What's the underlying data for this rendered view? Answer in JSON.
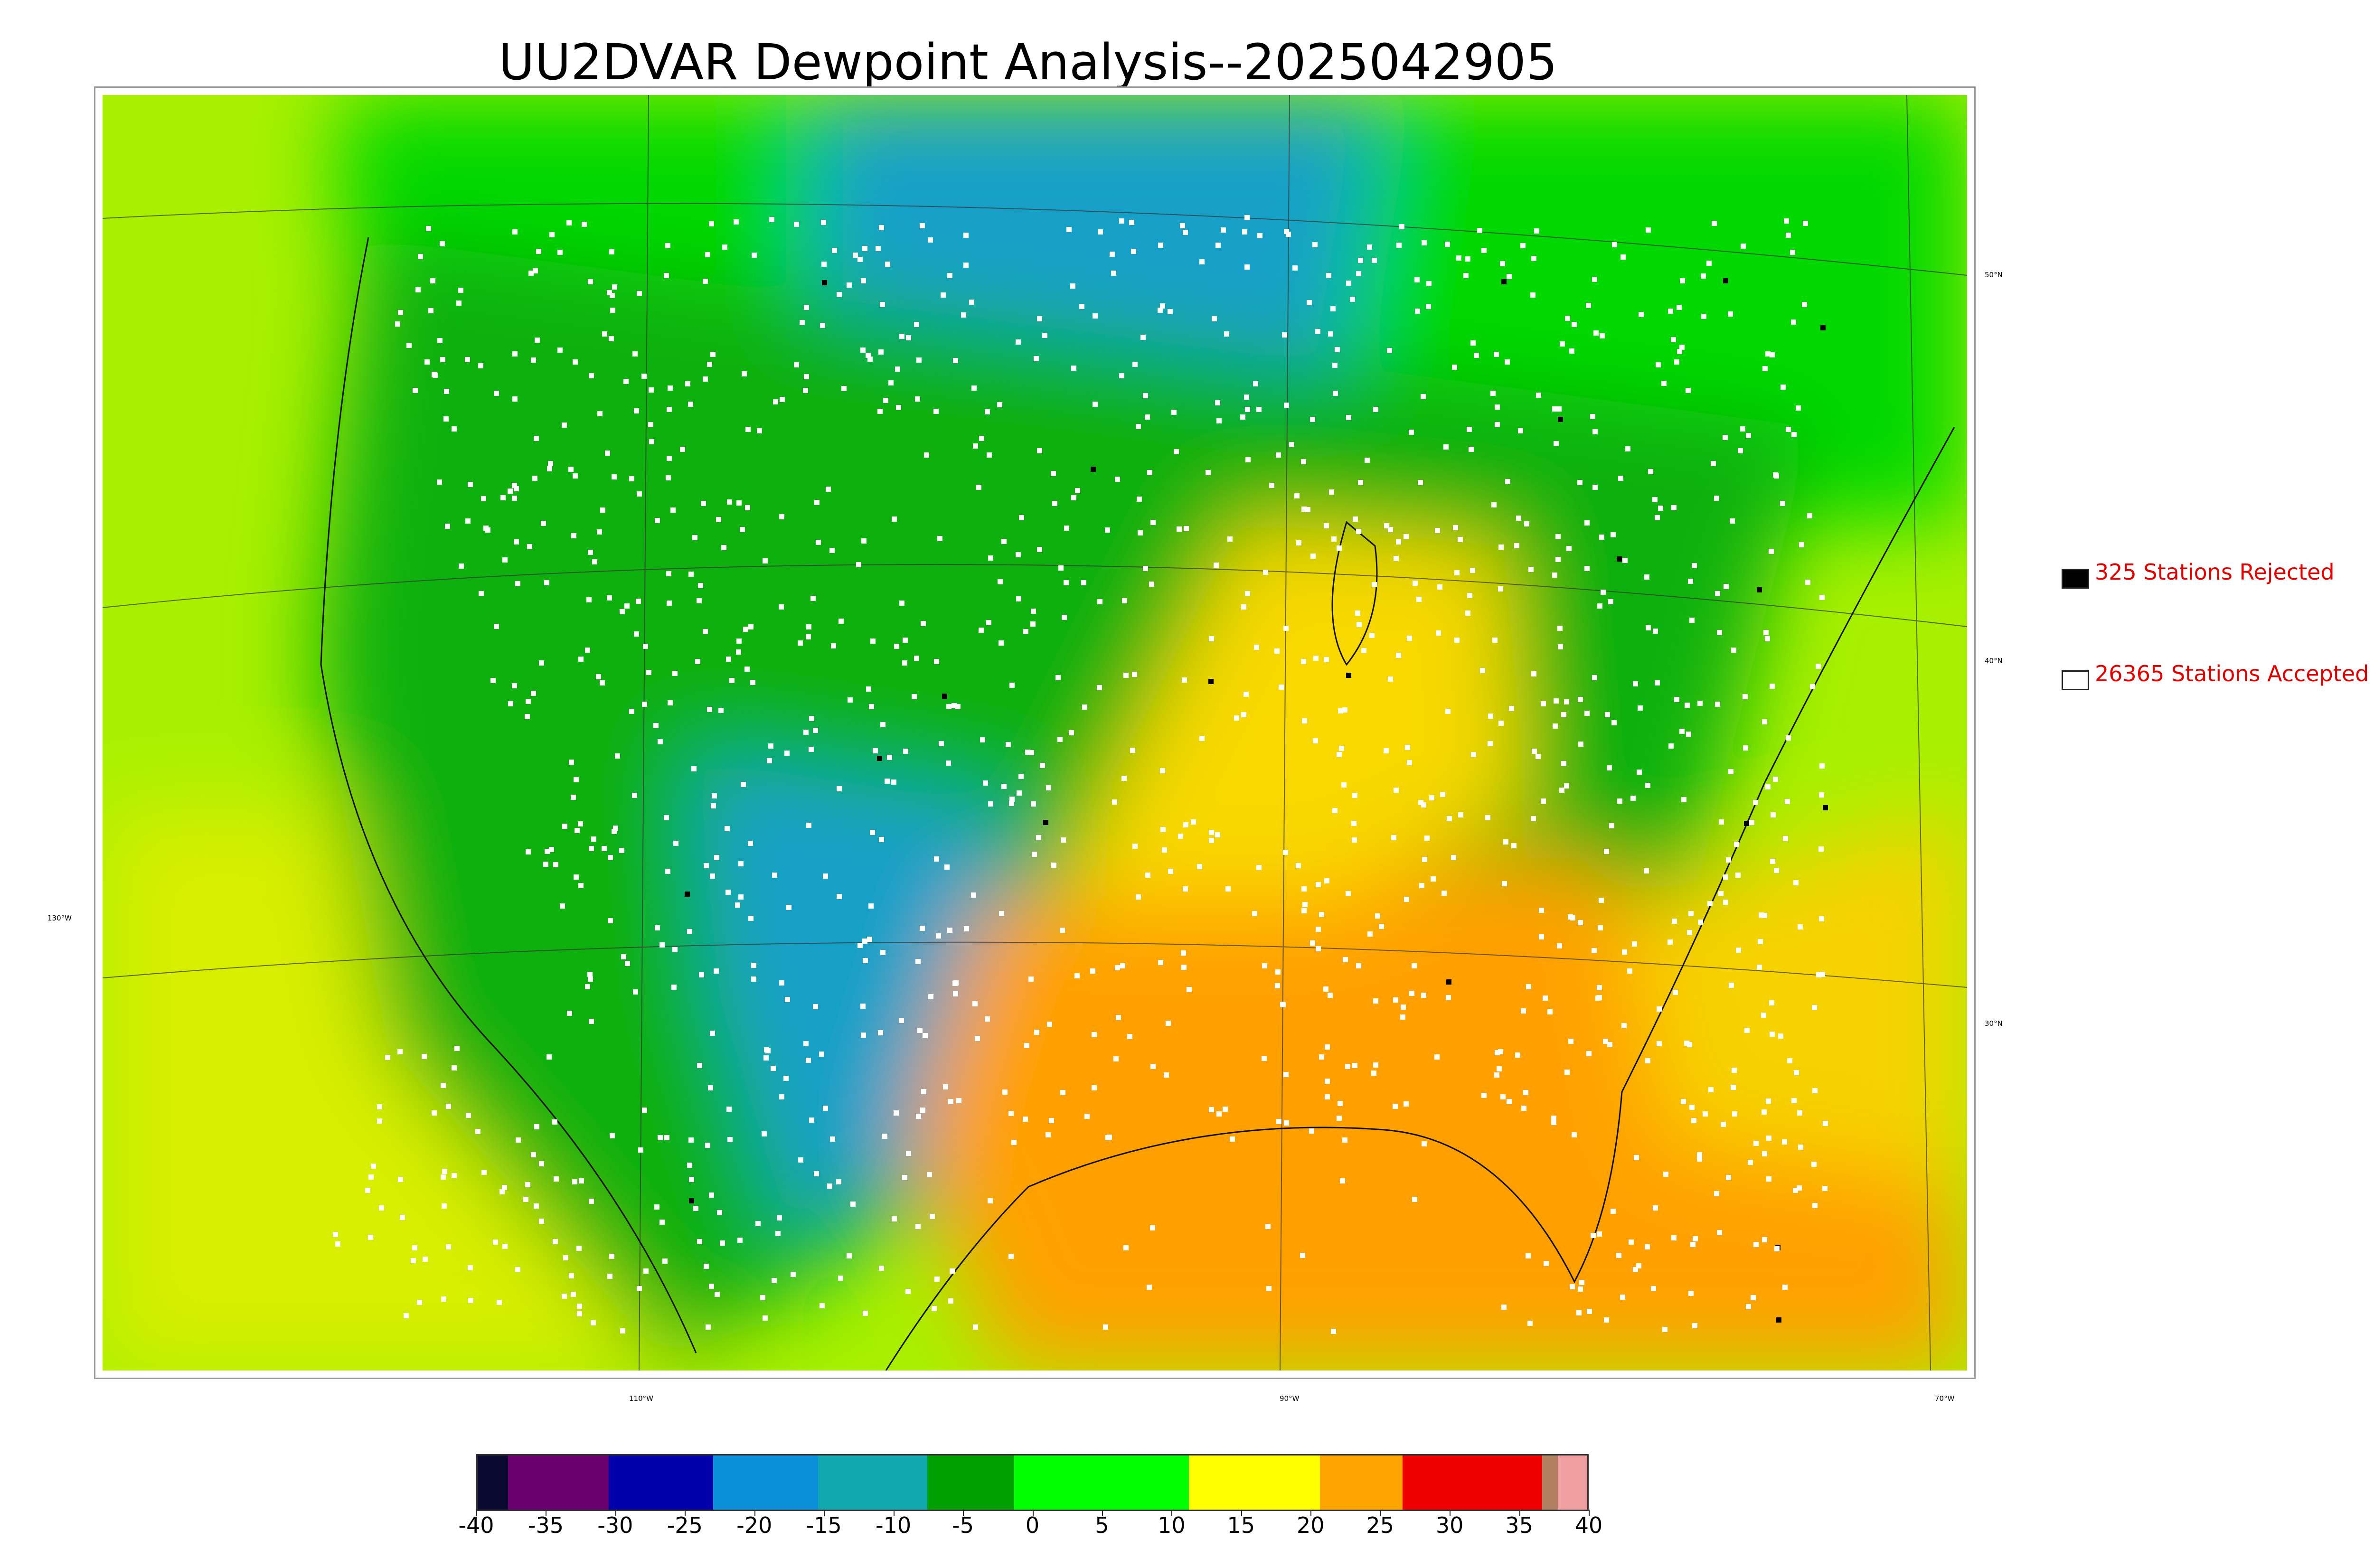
{
  "title": "UU2DVAR Dewpoint Analysis--2025042905",
  "legend": {
    "rejected": {
      "label": "325 Stations Rejected",
      "swatch_color": "#000000"
    },
    "accepted": {
      "label": "26365 Stations Accepted",
      "swatch_color": "#ffffff"
    }
  },
  "grid_labels": {
    "lat": [
      "50°N",
      "40°N",
      "30°N"
    ],
    "lon": [
      "130°W",
      "110°W",
      "90°W",
      "70°W"
    ]
  },
  "colorbar": {
    "ticks": [
      "-40",
      "-35",
      "-30",
      "-25",
      "-20",
      "-15",
      "-10",
      "-5",
      "0",
      "5",
      "10",
      "15",
      "20",
      "25",
      "30",
      "35",
      "40"
    ],
    "colors": [
      "#0a0a30",
      "#6a006e",
      "#0000aa",
      "#0990d8",
      "#12a8b0",
      "#00a000",
      "#00ff00",
      "#ffff00",
      "#ffa500",
      "#ee0000",
      "#b08060",
      "#f0a0a0"
    ]
  },
  "map_colors": {
    "ocean_north": "#00d800",
    "pacific": "#a8f000",
    "pacific_south": "#d8ee00",
    "gulf": "#ffa000",
    "atlantic_south": "#f6d200",
    "dry_blue": "#12a0c8",
    "land_green": "#10b010",
    "moist_yellow": "#f8d800",
    "moist_orange": "#ffb000"
  }
}
